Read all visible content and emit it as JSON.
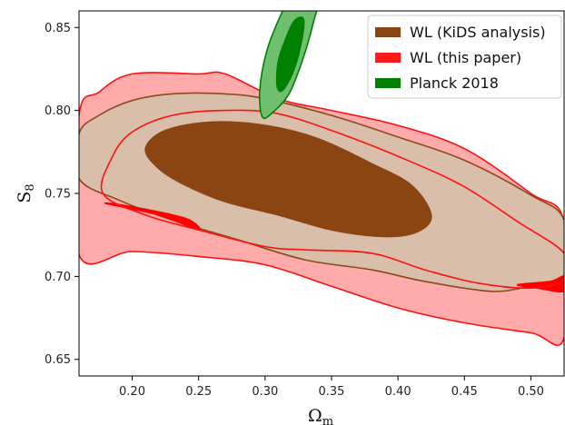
{
  "chart_data": {
    "type": "contour",
    "title": "",
    "xlabel": "Ω",
    "xlabel_sub": "m",
    "ylabel": "S",
    "ylabel_sub": "8",
    "xlim": [
      0.16,
      0.525
    ],
    "ylim": [
      0.64,
      0.86
    ],
    "xticks": [
      "0.20",
      "0.25",
      "0.30",
      "0.35",
      "0.40",
      "0.45",
      "0.50"
    ],
    "xtick_values": [
      0.2,
      0.25,
      0.3,
      0.35,
      0.4,
      0.45,
      0.5
    ],
    "yticks": [
      "0.65",
      "0.70",
      "0.75",
      "0.80",
      "0.85"
    ],
    "ytick_values": [
      0.65,
      0.7,
      0.75,
      0.8,
      0.85
    ],
    "legend_position": "top-right",
    "series": [
      {
        "name": "WL (KiDS analysis)",
        "color": "#8b4513",
        "contours": [
          {
            "level": "95%",
            "fill": "#d9bfaa",
            "stroke": "#8b4a1e",
            "points": [
              [
                0.16,
                0.786
              ],
              [
                0.175,
                0.797
              ],
              [
                0.2,
                0.806
              ],
              [
                0.23,
                0.81
              ],
              [
                0.27,
                0.81
              ],
              [
                0.3,
                0.807
              ],
              [
                0.35,
                0.797
              ],
              [
                0.4,
                0.784
              ],
              [
                0.45,
                0.77
              ],
              [
                0.5,
                0.749
              ],
              [
                0.525,
                0.734
              ],
              [
                0.525,
                0.697
              ],
              [
                0.5,
                0.694
              ],
              [
                0.47,
                0.691
              ],
              [
                0.42,
                0.697
              ],
              [
                0.38,
                0.704
              ],
              [
                0.33,
                0.71
              ],
              [
                0.28,
                0.722
              ],
              [
                0.23,
                0.734
              ],
              [
                0.19,
                0.746
              ],
              [
                0.16,
                0.759
              ]
            ]
          },
          {
            "level": "68%",
            "fill": "#8b4513",
            "stroke": "#8b4513",
            "points": [
              [
                0.21,
                0.777
              ],
              [
                0.225,
                0.788
              ],
              [
                0.26,
                0.793
              ],
              [
                0.3,
                0.791
              ],
              [
                0.34,
                0.783
              ],
              [
                0.38,
                0.768
              ],
              [
                0.41,
                0.755
              ],
              [
                0.425,
                0.737
              ],
              [
                0.415,
                0.727
              ],
              [
                0.39,
                0.724
              ],
              [
                0.35,
                0.728
              ],
              [
                0.31,
                0.737
              ],
              [
                0.27,
                0.745
              ],
              [
                0.24,
                0.755
              ],
              [
                0.22,
                0.765
              ]
            ]
          }
        ]
      },
      {
        "name": "WL (this paper)",
        "color": "#ff0000",
        "contours": [
          {
            "level": "95%",
            "fill": "#ff6666",
            "fill_opacity": 0.55,
            "stroke": "#ff1010",
            "points": [
              [
                0.16,
                0.797
              ],
              [
                0.175,
                0.811
              ],
              [
                0.2,
                0.822
              ],
              [
                0.25,
                0.822
              ],
              [
                0.27,
                0.822
              ],
              [
                0.31,
                0.807
              ],
              [
                0.35,
                0.8
              ],
              [
                0.4,
                0.791
              ],
              [
                0.45,
                0.777
              ],
              [
                0.5,
                0.75
              ],
              [
                0.525,
                0.733
              ],
              [
                0.525,
                0.663
              ],
              [
                0.5,
                0.666
              ],
              [
                0.45,
                0.672
              ],
              [
                0.4,
                0.681
              ],
              [
                0.35,
                0.694
              ],
              [
                0.3,
                0.707
              ],
              [
                0.25,
                0.712
              ],
              [
                0.2,
                0.715
              ],
              [
                0.16,
                0.713
              ]
            ]
          },
          {
            "level": "68%",
            "fill": "none",
            "stroke": "#ff1010",
            "points": [
              [
                0.178,
                0.75
              ],
              [
                0.185,
                0.772
              ],
              [
                0.2,
                0.787
              ],
              [
                0.23,
                0.797
              ],
              [
                0.27,
                0.8
              ],
              [
                0.31,
                0.798
              ],
              [
                0.36,
                0.785
              ],
              [
                0.41,
                0.769
              ],
              [
                0.45,
                0.754
              ],
              [
                0.49,
                0.733
              ],
              [
                0.525,
                0.714
              ],
              [
                0.525,
                0.698
              ],
              [
                0.5,
                0.693
              ],
              [
                0.46,
                0.696
              ],
              [
                0.42,
                0.704
              ],
              [
                0.38,
                0.714
              ],
              [
                0.33,
                0.716
              ],
              [
                0.3,
                0.718
              ],
              [
                0.25,
                0.728
              ],
              [
                0.21,
                0.737
              ]
            ]
          }
        ]
      },
      {
        "name": "Planck 2018",
        "color": "#008000",
        "contours": [
          {
            "level": "95%",
            "fill": "#6fbf6f",
            "stroke": "#008000",
            "points": [
              [
                0.298,
                0.796
              ],
              [
                0.296,
                0.812
              ],
              [
                0.301,
                0.835
              ],
              [
                0.311,
                0.856
              ],
              [
                0.321,
                0.87
              ],
              [
                0.34,
                0.87
              ],
              [
                0.336,
                0.852
              ],
              [
                0.328,
                0.83
              ],
              [
                0.318,
                0.81
              ],
              [
                0.306,
                0.799
              ]
            ]
          },
          {
            "level": "68%",
            "fill": "#008000",
            "stroke": "#008000",
            "points": [
              [
                0.309,
                0.815
              ],
              [
                0.31,
                0.83
              ],
              [
                0.316,
                0.844
              ],
              [
                0.322,
                0.854
              ],
              [
                0.329,
                0.855
              ],
              [
                0.327,
                0.84
              ],
              [
                0.321,
                0.823
              ],
              [
                0.313,
                0.812
              ]
            ]
          }
        ]
      }
    ],
    "red_slivers": [
      [
        [
          0.18,
          0.744
        ],
        [
          0.22,
          0.737
        ],
        [
          0.25,
          0.728
        ],
        [
          0.24,
          0.735
        ],
        [
          0.2,
          0.742
        ]
      ],
      [
        [
          0.49,
          0.695
        ],
        [
          0.515,
          0.697
        ],
        [
          0.525,
          0.7
        ],
        [
          0.525,
          0.691
        ],
        [
          0.505,
          0.693
        ]
      ]
    ]
  }
}
